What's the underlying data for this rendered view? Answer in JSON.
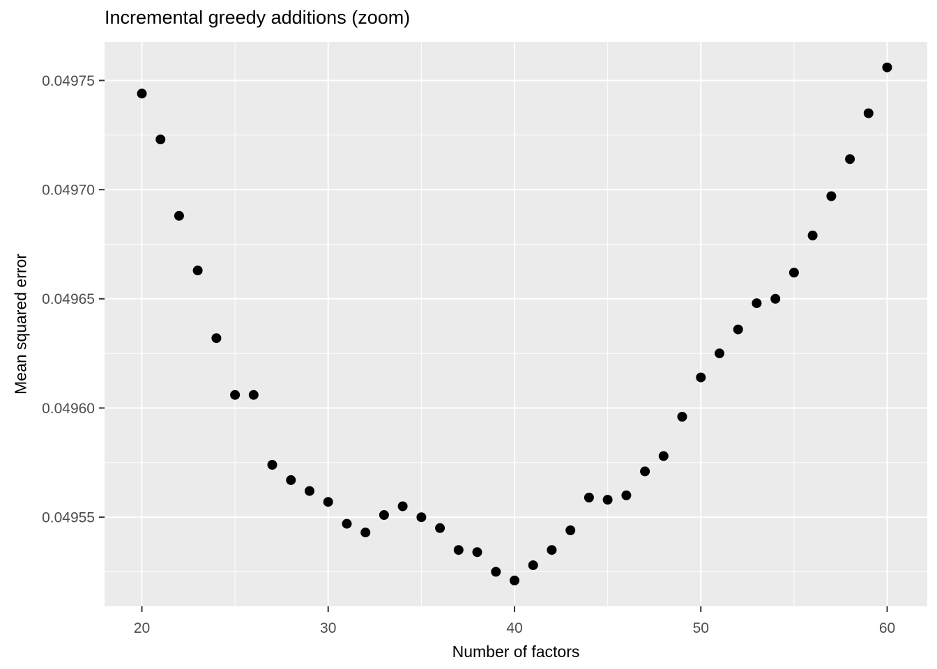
{
  "chart_data": {
    "type": "scatter",
    "title": "Incremental greedy additions (zoom)",
    "xlabel": "Number of factors",
    "ylabel": "Mean squared error",
    "x": [
      20,
      21,
      22,
      23,
      24,
      25,
      26,
      27,
      28,
      29,
      30,
      31,
      32,
      33,
      34,
      35,
      36,
      37,
      38,
      39,
      40,
      41,
      42,
      43,
      44,
      45,
      46,
      47,
      48,
      49,
      50,
      51,
      52,
      53,
      54,
      55,
      56,
      57,
      58,
      59,
      60
    ],
    "y": [
      0.049744,
      0.049723,
      0.049688,
      0.049663,
      0.049632,
      0.049606,
      0.049606,
      0.049574,
      0.049567,
      0.049562,
      0.049557,
      0.049547,
      0.049543,
      0.049551,
      0.049555,
      0.04955,
      0.049545,
      0.049535,
      0.049534,
      0.049525,
      0.049521,
      0.049528,
      0.049535,
      0.049544,
      0.049559,
      0.049558,
      0.04956,
      0.049571,
      0.049578,
      0.049596,
      0.049614,
      0.049625,
      0.049636,
      0.049648,
      0.04965,
      0.049662,
      0.049679,
      0.049697,
      0.049714,
      0.049735,
      0.049756
    ],
    "xlim": [
      18,
      62.15
    ],
    "ylim": [
      0.0495092,
      0.0497677
    ],
    "x_ticks": [
      20,
      30,
      40,
      50,
      60
    ],
    "x_tick_labels": [
      "20",
      "30",
      "40",
      "50",
      "60"
    ],
    "x_minor_ticks": [
      25,
      35,
      45,
      55
    ],
    "y_ticks": [
      0.04955,
      0.0496,
      0.04965,
      0.0497,
      0.04975
    ],
    "y_tick_labels": [
      "0.04955",
      "0.04960",
      "0.04965",
      "0.04970",
      "0.04975"
    ],
    "y_minor_ticks": [
      0.049525,
      0.049575,
      0.049625,
      0.049675,
      0.049725
    ],
    "grid": true,
    "legend": "none",
    "colors": {
      "panel_background": "#EBEBEB",
      "grid_major": "#FFFFFF",
      "grid_minor": "#FFFFFF",
      "point": "#000000",
      "axis_tick": "#333333",
      "tick_label": "#4D4D4D",
      "title": "#000000"
    }
  }
}
